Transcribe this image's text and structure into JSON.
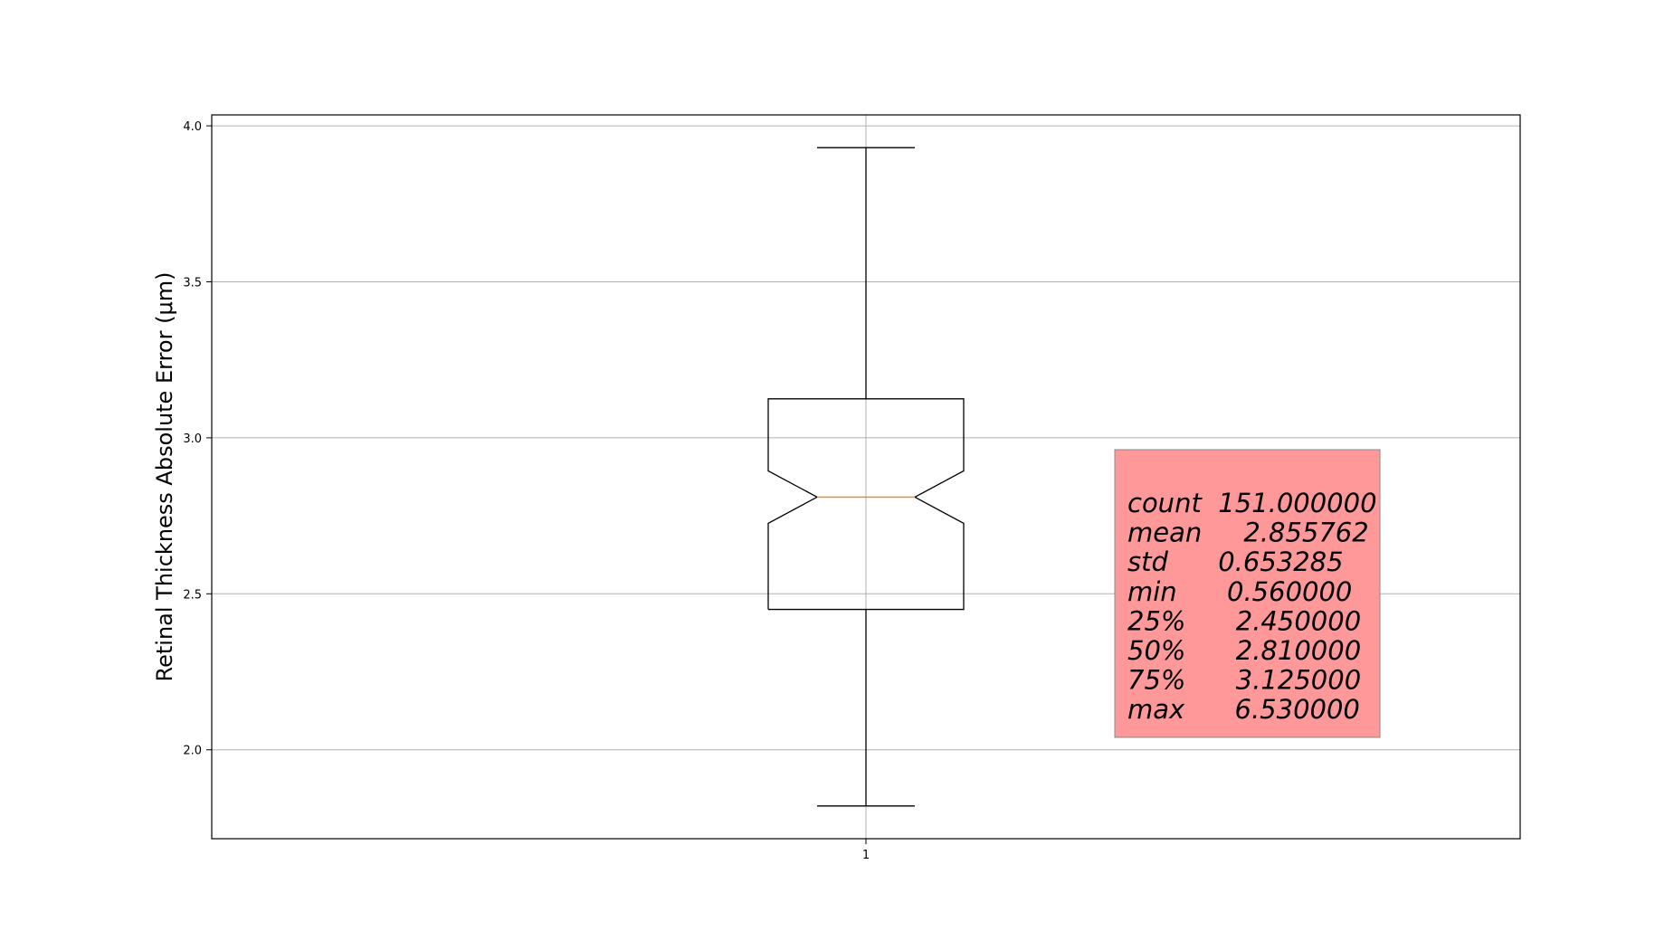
{
  "chart_data": {
    "type": "boxplot",
    "notched": true,
    "categories": [
      "1"
    ],
    "box": {
      "whisker_low": 1.82,
      "q1": 2.45,
      "median": 2.81,
      "q3": 3.125,
      "whisker_high": 3.93,
      "notch_low": 2.726,
      "notch_high": 2.894
    },
    "ylabel": "Retinal Thickness Absolute Error (μm)",
    "xlabel": "",
    "title": "",
    "ylim": [
      1.715,
      4.035
    ],
    "yticks": [
      "2.0",
      "2.5",
      "3.0",
      "3.5",
      "4.0"
    ],
    "xticks": [
      "1"
    ],
    "grid": true,
    "stats_box": {
      "lines": [
        "count  151.000000",
        "mean     2.855762",
        "std      0.653285",
        "min      0.560000",
        "25%      2.450000",
        "50%      2.810000",
        "75%      3.125000",
        "max      6.530000"
      ],
      "background": "#ff9999"
    },
    "colors": {
      "box": "#000000",
      "median": "#ff7f0e",
      "grid": "#b0b0b0"
    }
  }
}
